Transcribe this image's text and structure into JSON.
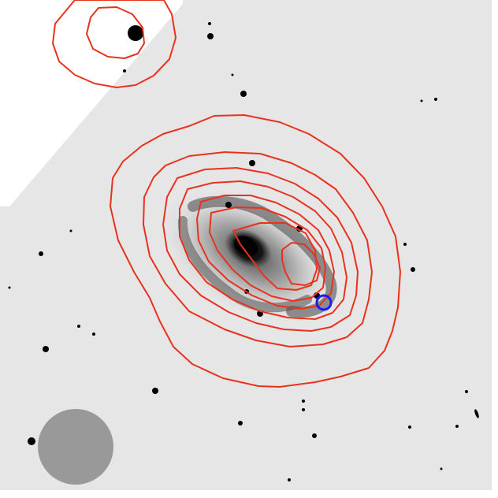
{
  "image": {
    "kind": "astronomical negative image with overlaid radio contours",
    "background": "#e6e6e6",
    "colors": {
      "contour": "#e8321e",
      "marker": "#1a1aff",
      "beam": "#999999",
      "stars": "#000000",
      "galaxy_core": "#050505",
      "blank_region": "#ffffff"
    }
  }
}
